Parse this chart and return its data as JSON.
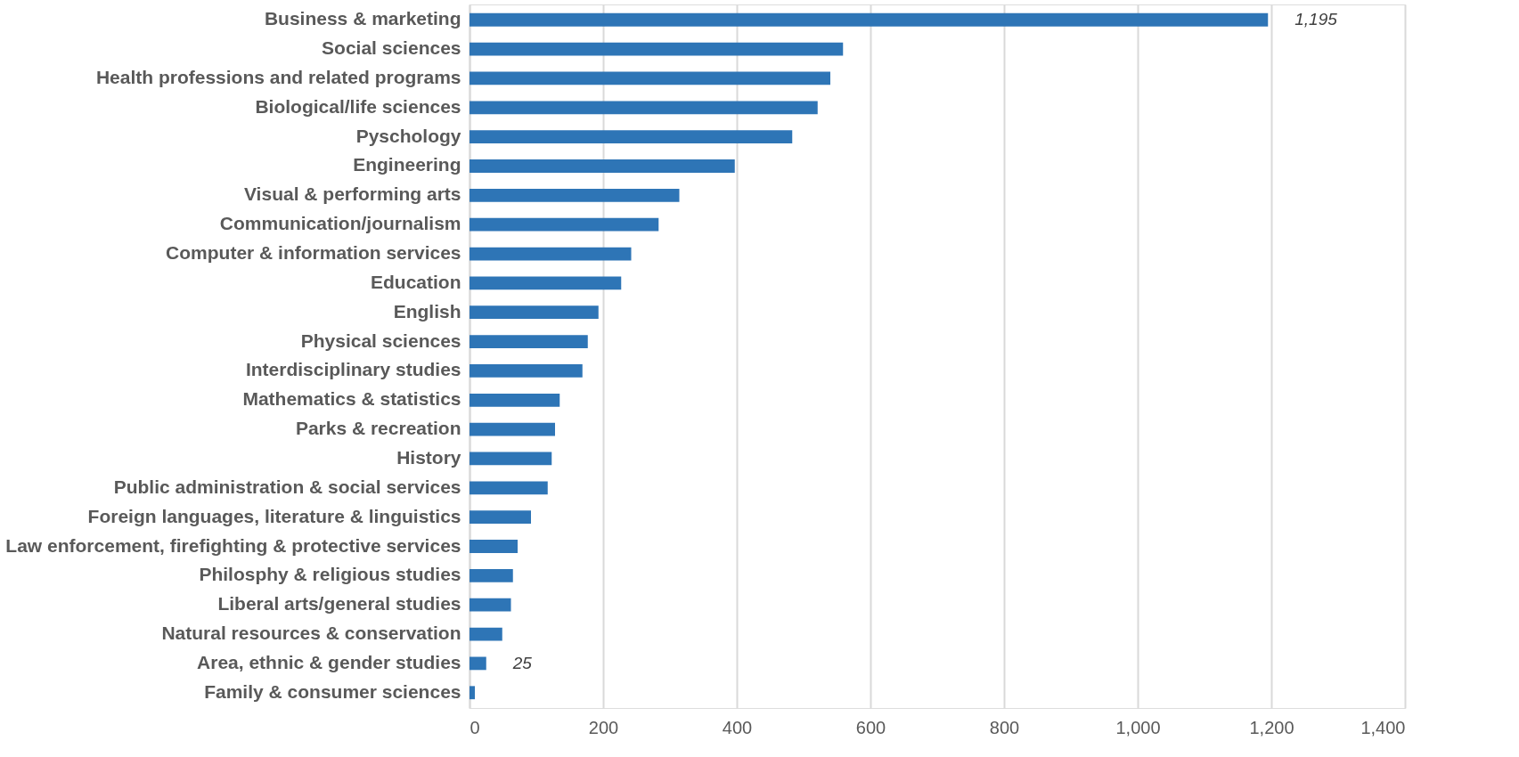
{
  "chart_data": {
    "type": "bar",
    "orientation": "horizontal",
    "categories": [
      "Business & marketing",
      "Social sciences",
      "Health professions and related programs",
      "Biological/life sciences",
      "Pyschology",
      "Engineering",
      "Visual & performing arts",
      "Communication/journalism",
      "Computer & information services",
      "Education",
      "English",
      "Physical sciences",
      "Interdisciplinary studies",
      "Mathematics & statistics",
      "Parks & recreation",
      "History",
      "Public administration & social services",
      "Foreign languages, literature & linguistics",
      "Law enforcement, firefighting & protective services",
      "Philosphy & religious studies",
      "Liberal arts/general studies",
      "Natural resources & conservation",
      "Area, ethnic & gender studies",
      "Family & consumer sciences"
    ],
    "values": [
      1195,
      559,
      540,
      521,
      483,
      397,
      314,
      283,
      242,
      227,
      193,
      177,
      169,
      135,
      128,
      123,
      117,
      92,
      72,
      65,
      62,
      49,
      25,
      8
    ],
    "value_labels": [
      "1,195",
      null,
      null,
      null,
      null,
      null,
      null,
      null,
      null,
      null,
      null,
      null,
      null,
      null,
      null,
      null,
      null,
      null,
      null,
      null,
      null,
      null,
      "25",
      null
    ],
    "color": "#2e75b6",
    "xlim": [
      0,
      1400
    ],
    "xticks": [
      0,
      200,
      400,
      600,
      800,
      {
        "value": 1000,
        "label": "1,000"
      },
      {
        "value": 1200,
        "label": "1,200"
      },
      {
        "value": 1400,
        "label": "1,400"
      }
    ],
    "grid": "x"
  }
}
